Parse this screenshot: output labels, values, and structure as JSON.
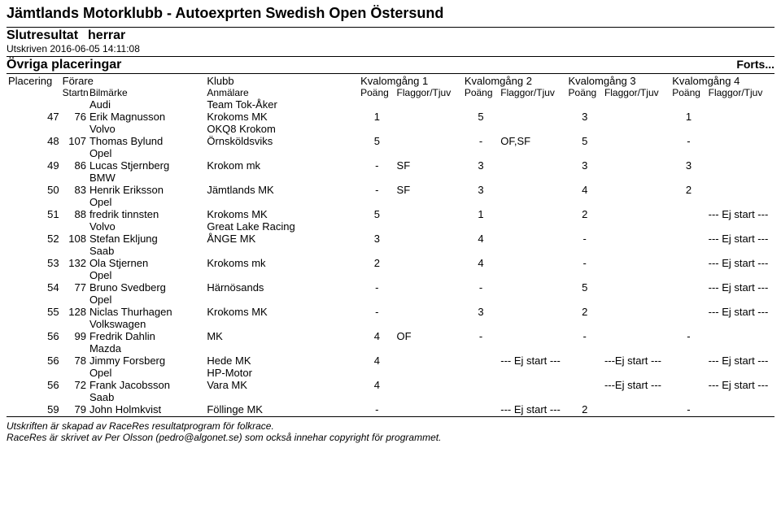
{
  "header": {
    "title": "Jämtlands Motorklubb - Autoexprten Swedish Open Östersund",
    "subtitle1": "Slutresultat",
    "subtitle2": "herrar",
    "timestamp": "Utskriven 2016-06-05 14:11:08",
    "section": "Övriga placeringar",
    "forts": "Forts..."
  },
  "cols": {
    "placering": "Placering",
    "forare": "Förare",
    "klubb": "Klubb",
    "startnr": "Startnr",
    "bilmarke": "Bilmärke",
    "anmalare": "Anmälare",
    "kval1": "Kvalomgång 1",
    "kval2": "Kvalomgång 2",
    "kval3": "Kvalomgång 3",
    "kval4": "Kvalomgång 4",
    "poang": "Poäng",
    "flaggor": "Flaggor/Tjuv"
  },
  "rows": [
    {
      "pl": "",
      "st": "",
      "name": "Audi",
      "club": "Team Tok-Åker",
      "q1p": "",
      "q1f": "",
      "q2p": "",
      "q2f": "",
      "q3p": "",
      "q3f": "",
      "q4p": "",
      "q4f": ""
    },
    {
      "pl": "47",
      "st": "76",
      "name": "Erik Magnusson",
      "club": "Krokoms MK",
      "q1p": "1",
      "q1f": "",
      "q2p": "5",
      "q2f": "",
      "q3p": "3",
      "q3f": "",
      "q4p": "1",
      "q4f": ""
    },
    {
      "pl": "",
      "st": "",
      "name": "Volvo",
      "club": "OKQ8 Krokom",
      "q1p": "",
      "q1f": "",
      "q2p": "",
      "q2f": "",
      "q3p": "",
      "q3f": "",
      "q4p": "",
      "q4f": ""
    },
    {
      "pl": "48",
      "st": "107",
      "name": "Thomas Bylund",
      "club": "Örnsköldsviks",
      "q1p": "5",
      "q1f": "",
      "q2p": "-",
      "q2f": "OF,SF",
      "q3p": "5",
      "q3f": "",
      "q4p": "-",
      "q4f": ""
    },
    {
      "pl": "",
      "st": "",
      "name": "Opel",
      "club": "",
      "q1p": "",
      "q1f": "",
      "q2p": "",
      "q2f": "",
      "q3p": "",
      "q3f": "",
      "q4p": "",
      "q4f": ""
    },
    {
      "pl": "49",
      "st": "86",
      "name": "Lucas Stjernberg",
      "club": "Krokom mk",
      "q1p": "-",
      "q1f": "SF",
      "q2p": "3",
      "q2f": "",
      "q3p": "3",
      "q3f": "",
      "q4p": "3",
      "q4f": ""
    },
    {
      "pl": "",
      "st": "",
      "name": "BMW",
      "club": "",
      "q1p": "",
      "q1f": "",
      "q2p": "",
      "q2f": "",
      "q3p": "",
      "q3f": "",
      "q4p": "",
      "q4f": ""
    },
    {
      "pl": "50",
      "st": "83",
      "name": "Henrik Eriksson",
      "club": "Jämtlands MK",
      "q1p": "-",
      "q1f": "SF",
      "q2p": "3",
      "q2f": "",
      "q3p": "4",
      "q3f": "",
      "q4p": "2",
      "q4f": ""
    },
    {
      "pl": "",
      "st": "",
      "name": "Opel",
      "club": "",
      "q1p": "",
      "q1f": "",
      "q2p": "",
      "q2f": "",
      "q3p": "",
      "q3f": "",
      "q4p": "",
      "q4f": ""
    },
    {
      "pl": "51",
      "st": "88",
      "name": "fredrik tinnsten",
      "club": "Krokoms MK",
      "q1p": "5",
      "q1f": "",
      "q2p": "1",
      "q2f": "",
      "q3p": "2",
      "q3f": "",
      "q4p": "",
      "q4f": "--- Ej start ---"
    },
    {
      "pl": "",
      "st": "",
      "name": "Volvo",
      "club": "Great Lake Racing",
      "q1p": "",
      "q1f": "",
      "q2p": "",
      "q2f": "",
      "q3p": "",
      "q3f": "",
      "q4p": "",
      "q4f": ""
    },
    {
      "pl": "52",
      "st": "108",
      "name": "Stefan Ekljung",
      "club": "ÅNGE MK",
      "q1p": "3",
      "q1f": "",
      "q2p": "4",
      "q2f": "",
      "q3p": "-",
      "q3f": "",
      "q4p": "",
      "q4f": "--- Ej start ---"
    },
    {
      "pl": "",
      "st": "",
      "name": "Saab",
      "club": "",
      "q1p": "",
      "q1f": "",
      "q2p": "",
      "q2f": "",
      "q3p": "",
      "q3f": "",
      "q4p": "",
      "q4f": ""
    },
    {
      "pl": "53",
      "st": "132",
      "name": "Ola Stjernen",
      "club": "Krokoms mk",
      "q1p": "2",
      "q1f": "",
      "q2p": "4",
      "q2f": "",
      "q3p": "-",
      "q3f": "",
      "q4p": "",
      "q4f": "--- Ej start ---"
    },
    {
      "pl": "",
      "st": "",
      "name": "Opel",
      "club": "",
      "q1p": "",
      "q1f": "",
      "q2p": "",
      "q2f": "",
      "q3p": "",
      "q3f": "",
      "q4p": "",
      "q4f": ""
    },
    {
      "pl": "54",
      "st": "77",
      "name": "Bruno Svedberg",
      "club": "Härnösands",
      "q1p": "-",
      "q1f": "",
      "q2p": "-",
      "q2f": "",
      "q3p": "5",
      "q3f": "",
      "q4p": "",
      "q4f": "--- Ej start ---"
    },
    {
      "pl": "",
      "st": "",
      "name": "Opel",
      "club": "",
      "q1p": "",
      "q1f": "",
      "q2p": "",
      "q2f": "",
      "q3p": "",
      "q3f": "",
      "q4p": "",
      "q4f": ""
    },
    {
      "pl": "55",
      "st": "128",
      "name": "Niclas Thurhagen",
      "club": "Krokoms MK",
      "q1p": "-",
      "q1f": "",
      "q2p": "3",
      "q2f": "",
      "q3p": "2",
      "q3f": "",
      "q4p": "",
      "q4f": "--- Ej start ---"
    },
    {
      "pl": "",
      "st": "",
      "name": "Volkswagen",
      "club": "",
      "q1p": "",
      "q1f": "",
      "q2p": "",
      "q2f": "",
      "q3p": "",
      "q3f": "",
      "q4p": "",
      "q4f": ""
    },
    {
      "pl": "56",
      "st": "99",
      "name": "Fredrik Dahlin",
      "club": "MK",
      "q1p": "4",
      "q1f": "OF",
      "q2p": "-",
      "q2f": "",
      "q3p": "-",
      "q3f": "",
      "q4p": "-",
      "q4f": ""
    },
    {
      "pl": "",
      "st": "",
      "name": "Mazda",
      "club": "",
      "q1p": "",
      "q1f": "",
      "q2p": "",
      "q2f": "",
      "q3p": "",
      "q3f": "",
      "q4p": "",
      "q4f": ""
    },
    {
      "pl": "56",
      "st": "78",
      "name": "Jimmy Forsberg",
      "club": "Hede MK",
      "q1p": "4",
      "q1f": "",
      "q2p": "",
      "q2f": "--- Ej start ---",
      "q3p": "",
      "q3f": "---Ej start ---",
      "q4p": "",
      "q4f": "--- Ej start ---"
    },
    {
      "pl": "",
      "st": "",
      "name": "Opel",
      "club": "HP-Motor",
      "q1p": "",
      "q1f": "",
      "q2p": "",
      "q2f": "",
      "q3p": "",
      "q3f": "",
      "q4p": "",
      "q4f": ""
    },
    {
      "pl": "56",
      "st": "72",
      "name": "Frank Jacobsson",
      "club": "Vara MK",
      "q1p": "4",
      "q1f": "",
      "q2p": "",
      "q2f": "",
      "q3p": "",
      "q3f": "---Ej start ---",
      "q4p": "",
      "q4f": "--- Ej start ---"
    },
    {
      "pl": "",
      "st": "",
      "name": "Saab",
      "club": "",
      "q1p": "",
      "q1f": "",
      "q2p": "",
      "q2f": "",
      "q3p": "",
      "q3f": "",
      "q4p": "",
      "q4f": ""
    },
    {
      "pl": "59",
      "st": "79",
      "name": "John Holmkvist",
      "club": "Föllinge MK",
      "q1p": "-",
      "q1f": "",
      "q2p": "",
      "q2f": "--- Ej start ---",
      "q3p": "2",
      "q3f": "",
      "q4p": "-",
      "q4f": ""
    }
  ],
  "footer": {
    "line1": "Utskriften är skapad av RaceRes resultatprogram för folkrace.",
    "line2": "RaceRes är skrivet av Per Olsson (pedro@algonet.se) som också innehar copyright för programmet."
  }
}
